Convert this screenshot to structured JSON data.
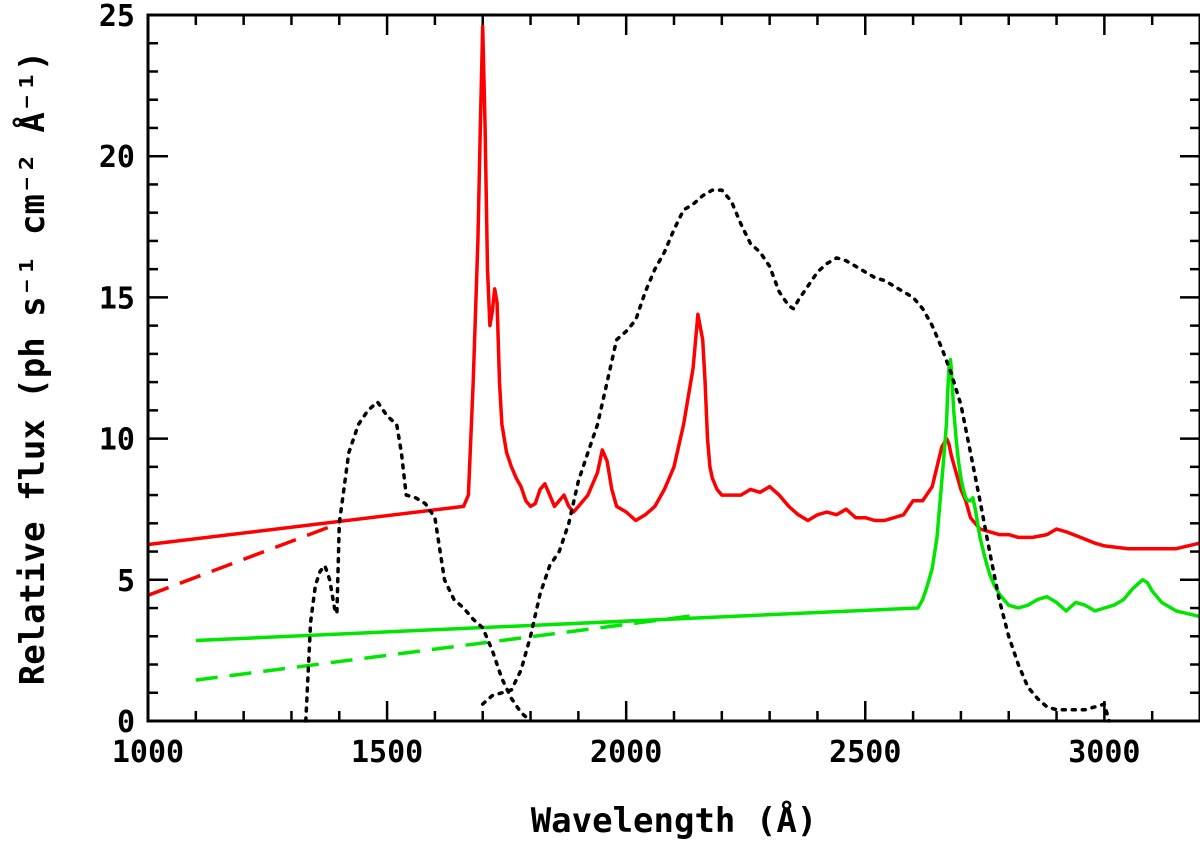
{
  "chart_data": {
    "type": "line",
    "title": "",
    "xlabel": "Wavelength (Å)",
    "ylabel": "Relative flux (ph s⁻¹ cm⁻² Å⁻¹)",
    "xlim": [
      1000,
      3200
    ],
    "ylim": [
      0,
      25
    ],
    "x_ticks": [
      1000,
      1500,
      2000,
      2500,
      3000
    ],
    "x_tick_labels": [
      "1000",
      "1500",
      "2000",
      "2500",
      "3000"
    ],
    "y_ticks": [
      0,
      5,
      10,
      15,
      20,
      25
    ],
    "y_tick_labels": [
      "0",
      "5",
      "10",
      "15",
      "20",
      "25"
    ],
    "x_minor_step": 100,
    "y_minor_step": 1,
    "grid": false,
    "series": [
      {
        "name": "red-spectrum",
        "color": "#ff0000",
        "style": "solid",
        "x": [
          1000,
          1660,
          1670,
          1680,
          1690,
          1695,
          1700,
          1705,
          1710,
          1715,
          1720,
          1725,
          1730,
          1735,
          1740,
          1750,
          1760,
          1770,
          1780,
          1790,
          1800,
          1810,
          1820,
          1830,
          1840,
          1850,
          1860,
          1870,
          1880,
          1890,
          1900,
          1920,
          1940,
          1950,
          1960,
          1970,
          1980,
          2000,
          2020,
          2040,
          2060,
          2080,
          2100,
          2120,
          2140,
          2150,
          2160,
          2165,
          2170,
          2175,
          2180,
          2190,
          2200,
          2220,
          2240,
          2260,
          2280,
          2300,
          2320,
          2340,
          2360,
          2380,
          2400,
          2420,
          2440,
          2460,
          2480,
          2500,
          2520,
          2540,
          2560,
          2580,
          2600,
          2620,
          2640,
          2650,
          2660,
          2670,
          2675,
          2680,
          2690,
          2700,
          2710,
          2720,
          2740,
          2760,
          2780,
          2800,
          2820,
          2850,
          2880,
          2900,
          2920,
          2950,
          2980,
          3000,
          3050,
          3100,
          3150,
          3200
        ],
        "y": [
          6.25,
          7.6,
          8.0,
          12.0,
          17.0,
          21.0,
          24.6,
          21.0,
          16.0,
          14.0,
          14.5,
          15.3,
          14.8,
          12.0,
          10.5,
          9.5,
          9.0,
          8.6,
          8.3,
          7.8,
          7.6,
          7.7,
          8.2,
          8.4,
          8.0,
          7.6,
          7.8,
          8.0,
          7.6,
          7.4,
          7.6,
          8.0,
          8.8,
          9.6,
          9.2,
          8.2,
          7.6,
          7.4,
          7.1,
          7.3,
          7.6,
          8.2,
          9.0,
          10.5,
          12.5,
          14.4,
          13.5,
          12.0,
          10.0,
          9.0,
          8.6,
          8.2,
          8.0,
          8.0,
          8.0,
          8.2,
          8.1,
          8.3,
          8.0,
          7.6,
          7.3,
          7.1,
          7.3,
          7.4,
          7.3,
          7.5,
          7.2,
          7.2,
          7.1,
          7.1,
          7.2,
          7.3,
          7.8,
          7.8,
          8.3,
          9.0,
          9.7,
          10.0,
          9.8,
          9.4,
          8.8,
          8.2,
          7.8,
          7.2,
          6.8,
          6.7,
          6.6,
          6.6,
          6.5,
          6.5,
          6.6,
          6.8,
          6.7,
          6.5,
          6.3,
          6.2,
          6.1,
          6.1,
          6.1,
          6.3
        ]
      },
      {
        "name": "red-extrapolation",
        "color": "#ff0000",
        "style": "dashed",
        "x": [
          1000,
          1400
        ],
        "y": [
          4.45,
          7.0
        ]
      },
      {
        "name": "green-spectrum",
        "color": "#00e600",
        "style": "solid",
        "x": [
          1100,
          2610,
          2620,
          2630,
          2640,
          2650,
          2655,
          2660,
          2665,
          2670,
          2672,
          2675,
          2678,
          2680,
          2685,
          2690,
          2695,
          2700,
          2705,
          2710,
          2715,
          2720,
          2725,
          2730,
          2740,
          2750,
          2760,
          2770,
          2780,
          2790,
          2800,
          2820,
          2840,
          2860,
          2880,
          2900,
          2920,
          2940,
          2960,
          2980,
          3000,
          3020,
          3040,
          3060,
          3080,
          3090,
          3100,
          3120,
          3150,
          3200
        ],
        "y": [
          2.85,
          4.0,
          4.3,
          4.8,
          5.4,
          6.5,
          7.5,
          8.5,
          9.5,
          10.6,
          11.5,
          12.5,
          12.8,
          12.5,
          11.0,
          10.0,
          9.2,
          8.6,
          8.2,
          7.9,
          7.8,
          7.8,
          7.9,
          7.5,
          6.5,
          5.8,
          5.2,
          4.8,
          4.5,
          4.3,
          4.1,
          4.0,
          4.1,
          4.3,
          4.4,
          4.2,
          3.9,
          4.2,
          4.1,
          3.9,
          4.0,
          4.1,
          4.3,
          4.7,
          5.0,
          4.9,
          4.6,
          4.2,
          3.9,
          3.7
        ]
      },
      {
        "name": "green-extrapolation",
        "color": "#00e600",
        "style": "dashed",
        "x": [
          1100,
          2150
        ],
        "y": [
          1.45,
          3.75
        ]
      },
      {
        "name": "filter-transmission-1",
        "color": "#000000",
        "style": "dotted",
        "x": [
          1330,
          1340,
          1350,
          1360,
          1370,
          1380,
          1390,
          1395,
          1400,
          1420,
          1440,
          1460,
          1480,
          1500,
          1520,
          1530,
          1540,
          1560,
          1580,
          1600,
          1620,
          1640,
          1660,
          1680,
          1700,
          1720,
          1740,
          1760,
          1780,
          1800
        ],
        "y": [
          0,
          3.5,
          4.8,
          5.3,
          5.5,
          5.0,
          4.0,
          3.8,
          7.0,
          9.5,
          10.5,
          11.0,
          11.3,
          10.8,
          10.5,
          9.5,
          8.0,
          7.9,
          7.7,
          7.2,
          5.0,
          4.3,
          4.0,
          3.6,
          3.3,
          2.5,
          1.5,
          0.8,
          0.3,
          0
        ]
      },
      {
        "name": "filter-transmission-2",
        "color": "#000000",
        "style": "dotted",
        "x": [
          1700,
          1720,
          1740,
          1760,
          1780,
          1800,
          1820,
          1840,
          1860,
          1880,
          1900,
          1920,
          1940,
          1960,
          1980,
          2000,
          2020,
          2040,
          2060,
          2080,
          2100,
          2120,
          2140,
          2160,
          2180,
          2200,
          2220,
          2240,
          2260,
          2280,
          2300,
          2320,
          2340,
          2350,
          2360,
          2380,
          2400,
          2420,
          2440,
          2460,
          2480,
          2500,
          2520,
          2540,
          2560,
          2580,
          2600,
          2620,
          2640,
          2660,
          2680,
          2700,
          2720,
          2740,
          2760,
          2780,
          2800,
          2820,
          2840,
          2860,
          2880,
          2900,
          2920,
          2940,
          2960,
          2980,
          3000,
          3010
        ],
        "y": [
          0.6,
          0.9,
          1.0,
          1.1,
          1.8,
          3.0,
          4.5,
          5.5,
          6.0,
          7.0,
          8.5,
          9.5,
          10.5,
          12.0,
          13.5,
          13.8,
          14.2,
          15.2,
          16.0,
          16.6,
          17.4,
          18.1,
          18.3,
          18.6,
          18.8,
          18.8,
          18.4,
          17.6,
          16.9,
          16.6,
          16.1,
          15.2,
          14.7,
          14.6,
          14.9,
          15.4,
          15.9,
          16.2,
          16.4,
          16.3,
          16.1,
          15.9,
          15.7,
          15.6,
          15.4,
          15.2,
          15.0,
          14.6,
          14.0,
          13.2,
          12.3,
          11.2,
          9.5,
          7.8,
          6.0,
          4.3,
          3.0,
          2.0,
          1.2,
          0.8,
          0.5,
          0.4,
          0.4,
          0.4,
          0.4,
          0.5,
          0.6,
          0.0
        ]
      }
    ]
  }
}
